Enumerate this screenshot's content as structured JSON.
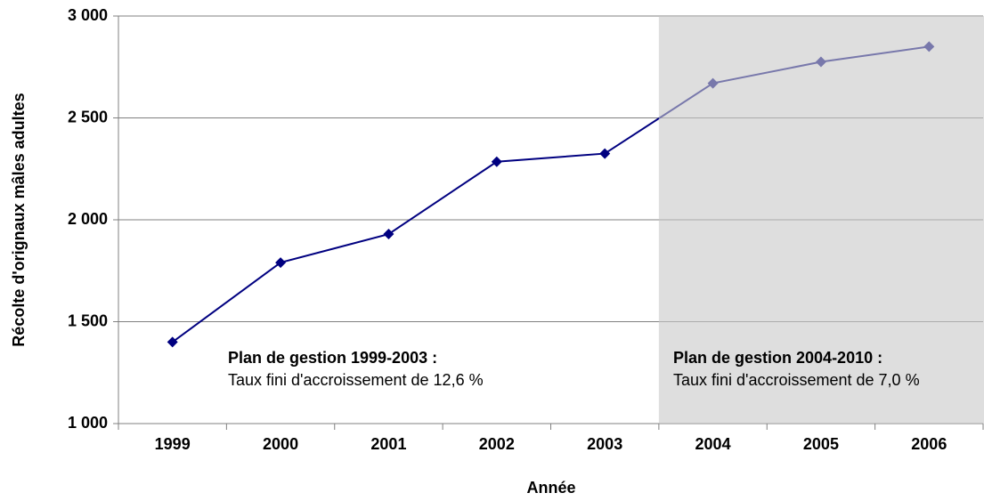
{
  "chart_data": {
    "type": "line",
    "y_label": "Récolte d'orignaux mâles adultes",
    "x_label": "Année",
    "categories": [
      "1999",
      "2000",
      "2001",
      "2002",
      "2003",
      "2004",
      "2005",
      "2006"
    ],
    "series": [
      {
        "name": "Récolte",
        "color": "#000080",
        "values": [
          1400,
          1790,
          1930,
          2285,
          2325,
          2670,
          2775,
          2850
        ]
      }
    ],
    "ylim": [
      1000,
      3000
    ],
    "yticks": [
      {
        "value": 1000,
        "label": "1 000"
      },
      {
        "value": 1500,
        "label": "1 500"
      },
      {
        "value": 2000,
        "label": "2 000"
      },
      {
        "value": 2500,
        "label": "2 500"
      },
      {
        "value": 3000,
        "label": "3 000"
      }
    ],
    "grid": true,
    "annotations": [
      {
        "title": "Plan de gestion 1999-2003 :",
        "text": "Taux fini d'accroissement de 12,6 %"
      },
      {
        "title": "Plan de gestion 2004-2010 :",
        "text": "Taux fini d'accroissement de 7,0 %"
      }
    ]
  }
}
